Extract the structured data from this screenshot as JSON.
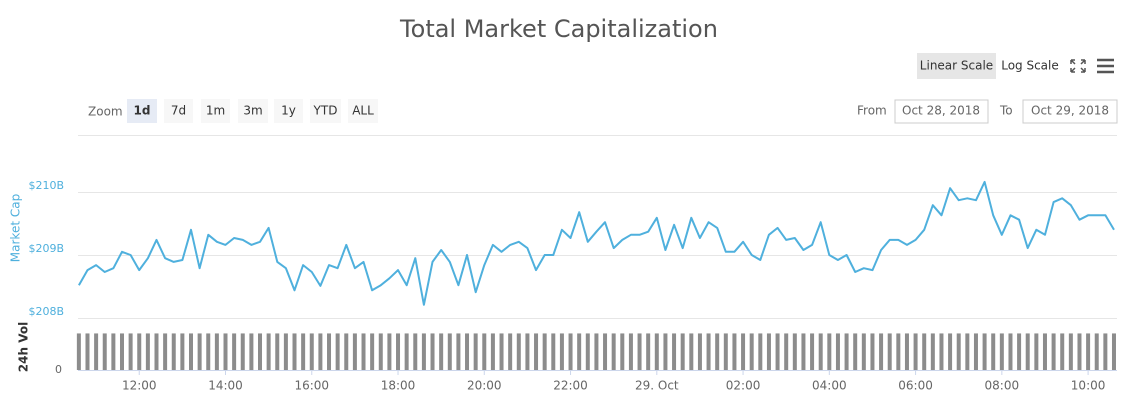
{
  "chart_data": {
    "type": "line",
    "title": "Total Market Capitalization",
    "x": [
      10.6,
      10.8,
      11.0,
      11.2,
      11.4,
      11.6,
      11.8,
      12.0,
      12.2,
      12.4,
      12.6,
      12.8,
      13.0,
      13.2,
      13.4,
      13.6,
      13.8,
      14.0,
      14.2,
      14.4,
      14.6,
      14.8,
      15.0,
      15.2,
      15.4,
      15.6,
      15.8,
      16.0,
      16.2,
      16.4,
      16.6,
      16.8,
      17.0,
      17.2,
      17.4,
      17.6,
      17.8,
      18.0,
      18.2,
      18.4,
      18.6,
      18.8,
      19.0,
      19.2,
      19.4,
      19.6,
      19.8,
      20.0,
      20.2,
      20.4,
      20.6,
      20.8,
      21.0,
      21.2,
      21.4,
      21.6,
      21.8,
      22.0,
      22.2,
      22.4,
      22.6,
      22.8,
      23.0,
      23.2,
      23.4,
      23.6,
      23.8,
      24.0,
      24.2,
      24.4,
      24.6,
      24.8,
      25.0,
      25.2,
      25.4,
      25.6,
      25.8,
      26.0,
      26.2,
      26.4,
      26.6,
      26.8,
      27.0,
      27.2,
      27.4,
      27.6,
      27.8,
      28.0,
      28.2,
      28.4,
      28.6,
      28.8,
      29.0,
      29.2,
      29.4,
      29.6,
      29.8,
      30.0,
      30.2,
      30.4,
      30.6,
      30.8,
      31.0,
      31.2,
      31.4,
      31.6,
      31.8,
      32.0,
      32.2,
      32.4,
      32.6,
      32.8,
      33.0,
      33.2,
      33.4,
      33.6,
      33.8,
      34.0,
      34.2,
      34.4,
      34.6
    ],
    "xlim": [
      10.58,
      34.67
    ],
    "xticks": [
      {
        "value": 12,
        "label": "12:00"
      },
      {
        "value": 14,
        "label": "14:00"
      },
      {
        "value": 16,
        "label": "16:00"
      },
      {
        "value": 18,
        "label": "18:00"
      },
      {
        "value": 20,
        "label": "20:00"
      },
      {
        "value": 22,
        "label": "22:00"
      },
      {
        "value": 24,
        "label": "29. Oct"
      },
      {
        "value": 26,
        "label": "02:00"
      },
      {
        "value": 28,
        "label": "04:00"
      },
      {
        "value": 30,
        "label": "06:00"
      },
      {
        "value": 32,
        "label": "08:00"
      },
      {
        "value": 34,
        "label": "10:00"
      }
    ],
    "ylim": [
      208,
      211
    ],
    "yticks": [
      {
        "value": 208,
        "label": "$208B"
      },
      {
        "value": 209,
        "label": "$209B"
      },
      {
        "value": 210,
        "label": "$210B"
      }
    ],
    "y_label": "Market Cap",
    "grid": true,
    "series": [
      {
        "color": "#4fb0dd",
        "values": [
          208.52,
          208.76,
          208.84,
          208.73,
          208.79,
          209.05,
          209.0,
          208.76,
          208.95,
          209.24,
          208.95,
          208.89,
          208.92,
          209.4,
          208.79,
          209.32,
          209.21,
          209.16,
          209.27,
          209.24,
          209.16,
          209.21,
          209.43,
          208.89,
          208.79,
          208.44,
          208.84,
          208.73,
          208.51,
          208.84,
          208.79,
          209.16,
          208.79,
          208.89,
          208.44,
          208.52,
          208.63,
          208.76,
          208.52,
          208.95,
          208.21,
          208.89,
          209.08,
          208.89,
          208.52,
          209.0,
          208.41,
          208.84,
          209.16,
          209.05,
          209.16,
          209.21,
          209.11,
          208.76,
          209.0,
          209.0,
          209.4,
          209.27,
          209.68,
          209.21,
          209.37,
          209.52,
          209.11,
          209.24,
          209.32,
          209.32,
          209.37,
          209.59,
          209.08,
          209.48,
          209.11,
          209.59,
          209.27,
          209.52,
          209.43,
          209.05,
          209.05,
          209.21,
          209.0,
          208.92,
          209.32,
          209.43,
          209.24,
          209.27,
          209.08,
          209.16,
          209.52,
          209.0,
          208.92,
          209.0,
          208.73,
          208.79,
          208.76,
          209.08,
          209.24,
          209.24,
          209.16,
          209.24,
          209.4,
          209.79,
          209.63,
          210.06,
          209.87,
          209.9,
          209.87,
          210.16,
          209.63,
          209.32,
          209.63,
          209.56,
          209.11,
          209.4,
          209.32,
          209.84,
          209.9,
          209.79,
          209.56,
          209.63,
          209.63,
          209.63,
          209.4
        ]
      }
    ],
    "volume": {
      "label": "24h Vol",
      "ylim": [
        0,
        16
      ],
      "yticks": [
        0
      ],
      "color": "#8c8c8c",
      "values": [
        13,
        13,
        13,
        13,
        13,
        13,
        13,
        13,
        13,
        13,
        13,
        13,
        13,
        13,
        13,
        13,
        13,
        13,
        13,
        13,
        13,
        13,
        13,
        13,
        13,
        13,
        13,
        13,
        13,
        13,
        13,
        13,
        13,
        13,
        13,
        13,
        13,
        13,
        13,
        13,
        13,
        13,
        13,
        13,
        13,
        13,
        13,
        13,
        13,
        13,
        13,
        13,
        13,
        13,
        13,
        13,
        13,
        13,
        13,
        13,
        13,
        13,
        13,
        13,
        13,
        13,
        13,
        13,
        13,
        13,
        13,
        13,
        13,
        13,
        13,
        13,
        13,
        13,
        13,
        13,
        13,
        13,
        13,
        13,
        13,
        13,
        13,
        13,
        13,
        13,
        13,
        13,
        13,
        13,
        13,
        13,
        13,
        13,
        13,
        13,
        13,
        13,
        13,
        13,
        13,
        13,
        13,
        13,
        13,
        13,
        13,
        13,
        13,
        13,
        13,
        13,
        13,
        13,
        13,
        13,
        13
      ]
    }
  },
  "controls": {
    "scale_buttons": [
      "Linear Scale",
      "Log Scale"
    ],
    "active_scale": 0,
    "zoom_label": "Zoom",
    "zoom_buttons": [
      "1d",
      "7d",
      "1m",
      "3m",
      "1y",
      "YTD",
      "ALL"
    ],
    "active_zoom": 0,
    "from_label": "From",
    "from_date": "Oct 28, 2018",
    "to_label": "To",
    "to_date": "Oct 29, 2018"
  }
}
